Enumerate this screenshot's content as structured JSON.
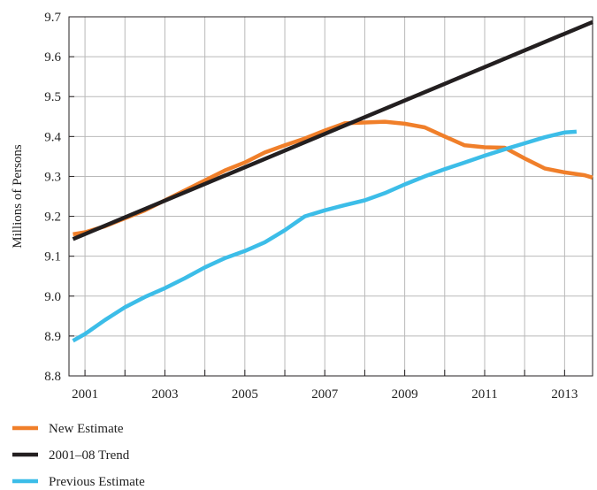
{
  "chart_data": {
    "type": "line",
    "title": "",
    "xlabel": "",
    "ylabel": "Millions of Persons",
    "xlim": [
      2000.6,
      2013.7
    ],
    "ylim": [
      8.8,
      9.7
    ],
    "x_ticks": [
      2001,
      2003,
      2005,
      2007,
      2009,
      2011,
      2013
    ],
    "x_tick_labels": [
      "2001",
      "2003",
      "2005",
      "2007",
      "2009",
      "2011",
      "2013"
    ],
    "y_ticks": [
      8.8,
      8.9,
      9.0,
      9.1,
      9.2,
      9.3,
      9.4,
      9.5,
      9.6,
      9.7
    ],
    "y_tick_labels": [
      "8.8",
      "8.9",
      "9.0",
      "9.1",
      "9.2",
      "9.3",
      "9.4",
      "9.5",
      "9.6",
      "9.7"
    ],
    "grid": true,
    "legend_position": "bottom-left",
    "series": [
      {
        "name": "New Estimate",
        "color": "#f07f2a",
        "x": [
          2000.7,
          2001.0,
          2001.5,
          2002.0,
          2002.5,
          2003.0,
          2003.5,
          2004.0,
          2004.5,
          2005.0,
          2005.5,
          2006.0,
          2006.5,
          2007.0,
          2007.5,
          2008.0,
          2008.5,
          2009.0,
          2009.5,
          2010.0,
          2010.5,
          2011.0,
          2011.5,
          2012.0,
          2012.5,
          2013.0,
          2013.5,
          2013.7
        ],
        "y": [
          9.155,
          9.16,
          9.175,
          9.195,
          9.215,
          9.24,
          9.265,
          9.29,
          9.315,
          9.335,
          9.36,
          9.378,
          9.395,
          9.415,
          9.433,
          9.435,
          9.437,
          9.432,
          9.423,
          9.4,
          9.378,
          9.373,
          9.372,
          9.345,
          9.32,
          9.31,
          9.303,
          9.297
        ]
      },
      {
        "name": "2001–08 Trend",
        "color": "#231f20",
        "x": [
          2000.7,
          2013.7
        ],
        "y": [
          9.143,
          9.687
        ]
      },
      {
        "name": "Previous Estimate",
        "color": "#3cbde8",
        "x": [
          2000.7,
          2001.0,
          2001.5,
          2002.0,
          2002.5,
          2003.0,
          2003.5,
          2004.0,
          2004.5,
          2005.0,
          2005.5,
          2006.0,
          2006.5,
          2007.0,
          2007.5,
          2008.0,
          2008.5,
          2009.0,
          2009.5,
          2010.0,
          2010.5,
          2011.0,
          2011.5,
          2012.0,
          2012.5,
          2013.0,
          2013.3
        ],
        "y": [
          8.888,
          8.905,
          8.94,
          8.972,
          8.998,
          9.02,
          9.045,
          9.072,
          9.095,
          9.113,
          9.135,
          9.165,
          9.2,
          9.215,
          9.228,
          9.24,
          9.258,
          9.28,
          9.3,
          9.318,
          9.335,
          9.352,
          9.368,
          9.383,
          9.398,
          9.41,
          9.412
        ]
      }
    ]
  }
}
